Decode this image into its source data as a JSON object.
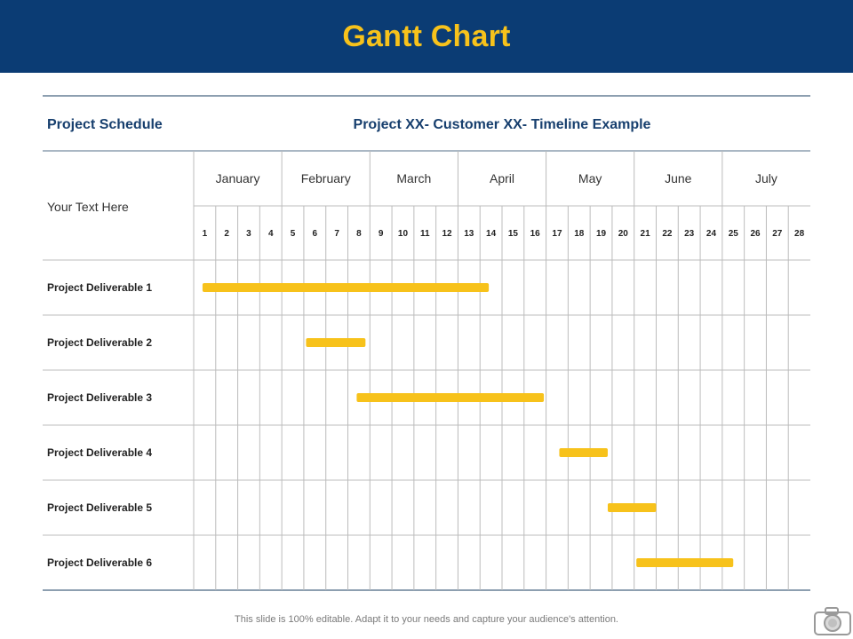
{
  "header": {
    "title": "Gantt Chart"
  },
  "table": {
    "left_heading": "Project Schedule",
    "right_heading": "Project XX- Customer XX- Timeline Example",
    "row_header_text": "Your Text Here"
  },
  "chart_data": {
    "type": "gantt",
    "months": [
      "January",
      "February",
      "March",
      "April",
      "May",
      "June",
      "July"
    ],
    "periods": [
      "1",
      "2",
      "3",
      "4",
      "5",
      "6",
      "7",
      "8",
      "9",
      "10",
      "11",
      "12",
      "13",
      "14",
      "15",
      "16",
      "17",
      "18",
      "19",
      "20",
      "21",
      "22",
      "23",
      "24",
      "25",
      "26",
      "27",
      "28"
    ],
    "tasks": [
      {
        "name": "Project Deliverable 1",
        "start": 1.4,
        "end": 14.4
      },
      {
        "name": "Project Deliverable 2",
        "start": 6.1,
        "end": 8.8
      },
      {
        "name": "Project Deliverable 3",
        "start": 8.4,
        "end": 16.9
      },
      {
        "name": "Project Deliverable 4",
        "start": 17.6,
        "end": 19.8
      },
      {
        "name": "Project Deliverable 5",
        "start": 19.8,
        "end": 22.0
      },
      {
        "name": "Project Deliverable 6",
        "start": 21.1,
        "end": 25.5
      }
    ],
    "bar_color": "#f7c21b"
  },
  "footer": {
    "note": "This slide is 100% editable. Adapt it to your needs and capture your audience's attention."
  },
  "colors": {
    "header_bg": "#0b3c74",
    "title": "#f7c21b",
    "heading_text": "#173f6e",
    "grid": "#bcbcbc",
    "rule": "#8d9fb0"
  },
  "icons": {
    "corner": "camera-icon"
  }
}
